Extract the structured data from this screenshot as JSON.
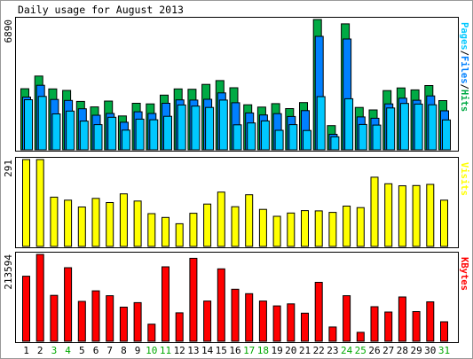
{
  "chart_data": {
    "type": "bar",
    "title": "Daily usage for August 2013",
    "categories": [
      "1",
      "2",
      "3",
      "4",
      "5",
      "6",
      "7",
      "8",
      "9",
      "10",
      "11",
      "12",
      "13",
      "14",
      "15",
      "16",
      "17",
      "18",
      "19",
      "20",
      "21",
      "22",
      "23",
      "24",
      "25",
      "26",
      "27",
      "28",
      "29",
      "30",
      "31"
    ],
    "weekend_days": [
      "3",
      "4",
      "10",
      "11",
      "17",
      "18",
      "24",
      "25",
      "31"
    ],
    "grid": false,
    "legend": "right-vertical",
    "panels": [
      {
        "id": "hits",
        "side_label": [
          "Pages",
          "/",
          "Files",
          "/",
          "Hits"
        ],
        "max_label": "6890",
        "ylim": [
          0,
          6890
        ],
        "series": [
          {
            "name": "Hits",
            "color": "#00aa44",
            "values": [
              3230,
              3900,
              3220,
              3140,
              2560,
              2270,
              2580,
              1790,
              2460,
              2430,
              2890,
              3220,
              3200,
              3460,
              3660,
              3280,
              2380,
              2260,
              2440,
              2180,
              2500,
              6890,
              1280,
              6660,
              2240,
              2110,
              3130,
              3270,
              3170,
              3400,
              2600
            ]
          },
          {
            "name": "Files",
            "color": "#0080ff",
            "values": [
              2790,
              3410,
              2660,
              2610,
              2170,
              1830,
              1920,
              1460,
              2010,
              1920,
              2460,
              2640,
              2630,
              2670,
              3010,
              2490,
              1950,
              1840,
              1910,
              1760,
              2070,
              6000,
              820,
              5860,
              1740,
              1670,
              2430,
              2730,
              2620,
              2850,
              2060
            ]
          },
          {
            "name": "Pages",
            "color": "#00c8ff",
            "values": [
              2650,
              2820,
              1900,
              2050,
              1520,
              1330,
              1720,
              1040,
              1620,
              1590,
              1770,
              2370,
              2310,
              2240,
              2630,
              1320,
              1420,
              1530,
              1030,
              1330,
              1020,
              2810,
              690,
              2700,
              1340,
              1310,
              2210,
              2450,
              2420,
              2380,
              1580
            ]
          }
        ]
      },
      {
        "id": "visits",
        "side_label": [
          "Visits"
        ],
        "max_label": "291",
        "ylim": [
          0,
          291
        ],
        "series": [
          {
            "name": "Visits",
            "color": "#ffff00",
            "values": [
              291,
              291,
              165,
              155,
              132,
              161,
              147,
              176,
              152,
              110,
              97,
              76,
              111,
              142,
              182,
              133,
              173,
              124,
              101,
              112,
              120,
              119,
              114,
              135,
              130,
              232,
              210,
              203,
              204,
              208,
              155
            ]
          }
        ]
      },
      {
        "id": "kbytes",
        "side_label": [
          "KBytes"
        ],
        "max_label": "213594",
        "ylim": [
          0,
          213594
        ],
        "series": [
          {
            "name": "KBytes",
            "color": "#ff0000",
            "values": [
              160000,
              213594,
              113000,
              181000,
              98000,
              124000,
              112000,
              84000,
              95000,
              42000,
              183000,
              70000,
              204000,
              99000,
              178000,
              128000,
              117000,
              99000,
              87000,
              92000,
              69000,
              145000,
              35000,
              112000,
              22000,
              85000,
              72000,
              109000,
              73000,
              97000,
              48000
            ]
          }
        ]
      }
    ]
  }
}
